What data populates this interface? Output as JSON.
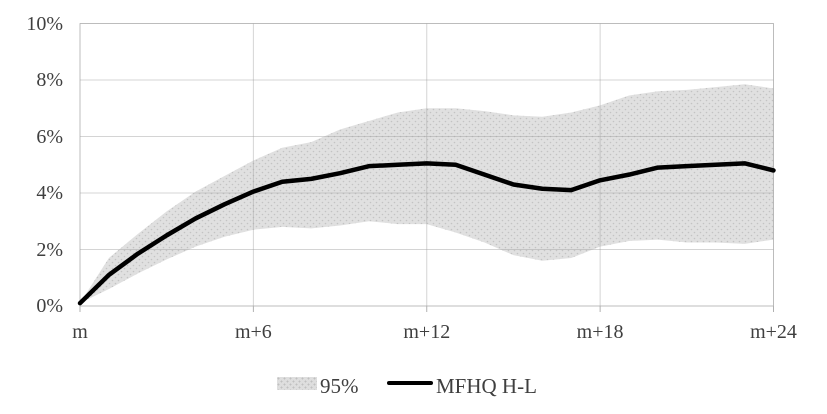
{
  "chart_data": {
    "type": "line",
    "description": "line with shaded 95% confidence band",
    "x_months": [
      0,
      1,
      2,
      3,
      4,
      5,
      6,
      7,
      8,
      9,
      10,
      11,
      12,
      13,
      14,
      15,
      16,
      17,
      18,
      19,
      20,
      21,
      22,
      23,
      24
    ],
    "x_tick_positions": [
      0,
      6,
      12,
      18,
      24
    ],
    "x_tick_labels": [
      "m",
      "m+6",
      "m+12",
      "m+18",
      "m+24"
    ],
    "y_tick_labels": [
      "0%",
      "2%",
      "4%",
      "6%",
      "8%",
      "10%"
    ],
    "y_tick_values": [
      0,
      2,
      4,
      6,
      8,
      10
    ],
    "ylim": [
      0,
      10
    ],
    "y_unit": "percent",
    "grid": true,
    "legend_position": "bottom-center",
    "series": [
      {
        "name": "95%",
        "type": "band",
        "upper": [
          0.1,
          1.7,
          2.55,
          3.35,
          4.05,
          4.6,
          5.15,
          5.6,
          5.8,
          6.25,
          6.55,
          6.85,
          7.0,
          7.0,
          6.9,
          6.75,
          6.7,
          6.85,
          7.1,
          7.45,
          7.6,
          7.65,
          7.75,
          7.85,
          7.7
        ],
        "lower": [
          0.1,
          0.6,
          1.15,
          1.65,
          2.1,
          2.45,
          2.7,
          2.8,
          2.75,
          2.85,
          3.0,
          2.9,
          2.9,
          2.6,
          2.25,
          1.8,
          1.6,
          1.7,
          2.1,
          2.3,
          2.35,
          2.25,
          2.25,
          2.2,
          2.35
        ],
        "fill": "#dedede"
      },
      {
        "name": "MFHQ H-L",
        "type": "line",
        "values": [
          0.1,
          1.1,
          1.85,
          2.5,
          3.1,
          3.6,
          4.05,
          4.4,
          4.5,
          4.7,
          4.95,
          5.0,
          5.05,
          5.0,
          4.65,
          4.3,
          4.15,
          4.1,
          4.45,
          4.65,
          4.9,
          4.95,
          5.0,
          5.05,
          4.8
        ],
        "color": "#000000"
      }
    ]
  },
  "axis": {
    "y_ticks": [
      "0%",
      "2%",
      "4%",
      "6%",
      "8%",
      "10%"
    ],
    "x_ticks": [
      "m",
      "m+6",
      "m+12",
      "m+18",
      "m+24"
    ]
  },
  "legend": {
    "band_label": "95%",
    "line_label": "MFHQ H-L"
  },
  "colors": {
    "band_fill": "#dedede",
    "band_dots": "#c0c0c0",
    "line": "#000000",
    "gridline": "#d6d6d6",
    "tick": "#b0b0b0",
    "text": "#3f3f3f",
    "background": "#ffffff"
  }
}
